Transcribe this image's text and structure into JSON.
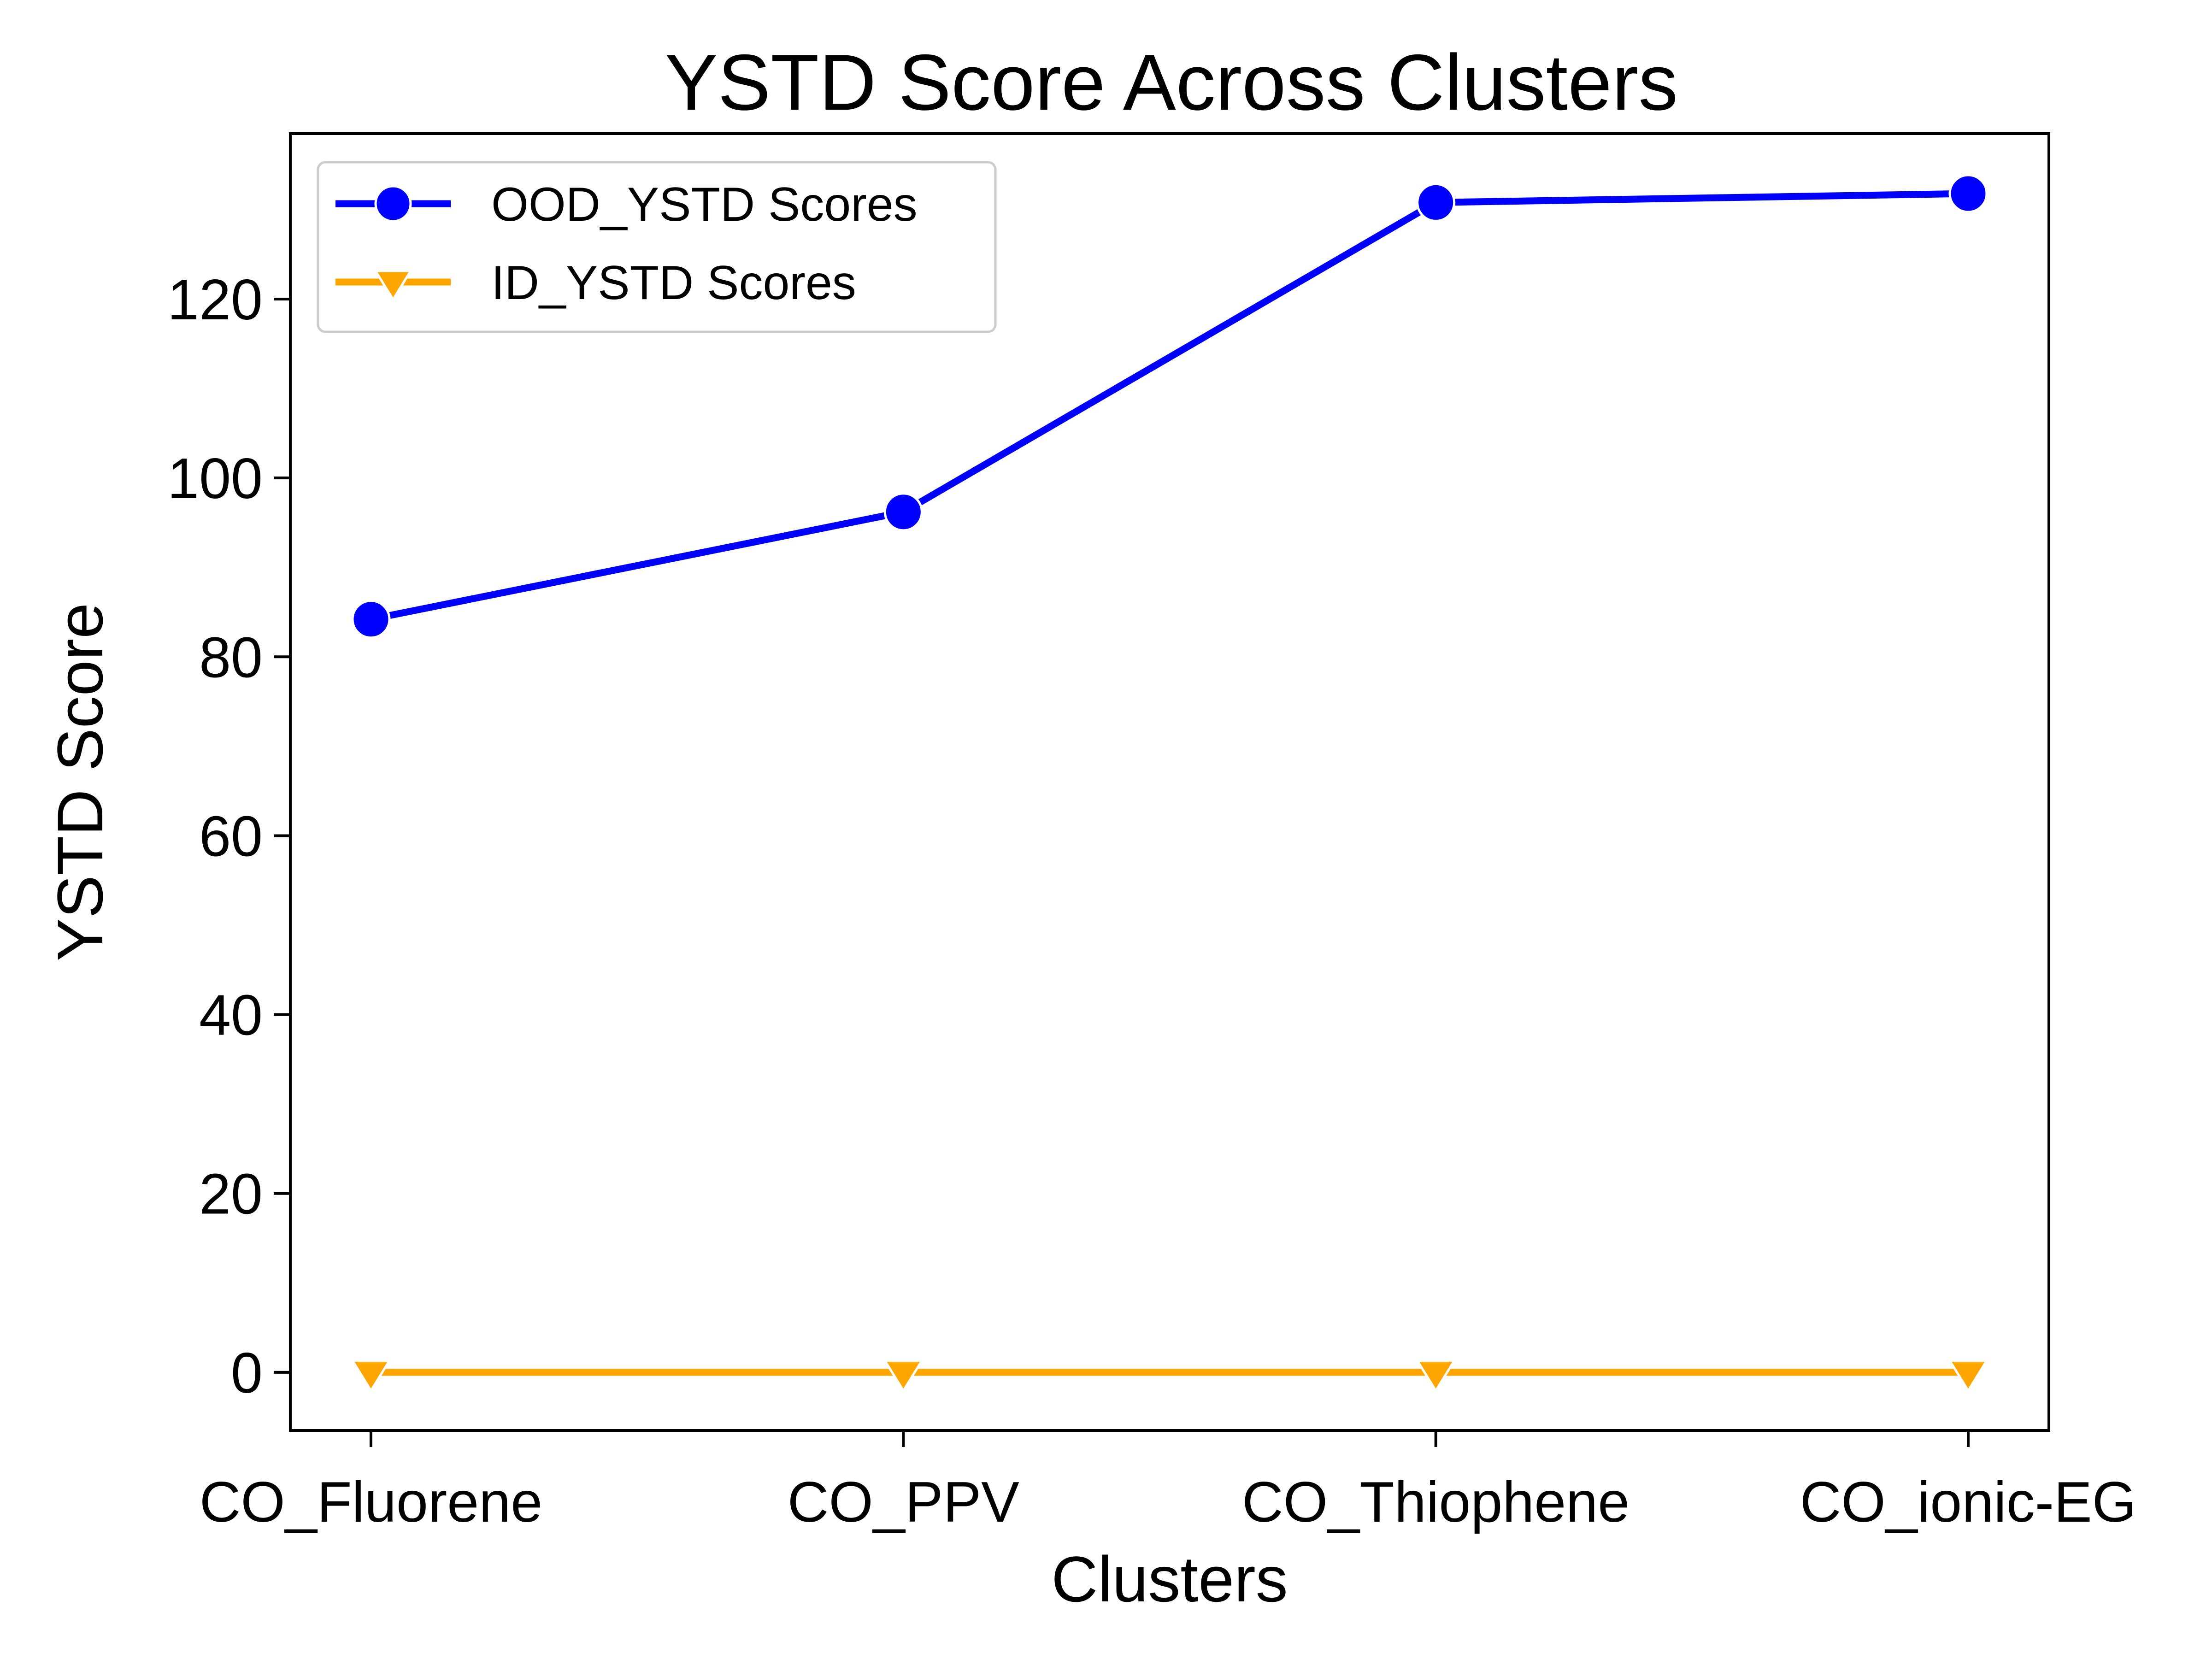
{
  "chart_data": {
    "type": "line",
    "title": "YSTD Score Across Clusters",
    "xlabel": "Clusters",
    "ylabel": "YSTD Score",
    "categories": [
      "CO_Fluorene",
      "CO_PPV",
      "CO_Thiophene",
      "CO_ionic-EG"
    ],
    "ylim": [
      -6.5,
      138.5
    ],
    "yticks": [
      0,
      20,
      40,
      60,
      80,
      100,
      120
    ],
    "grid": false,
    "legend_position": "top-left",
    "series": [
      {
        "name": "OOD_YSTD Scores",
        "values": [
          84.2,
          96.2,
          130.8,
          131.8
        ],
        "color": "#0000ff",
        "marker": "circle"
      },
      {
        "name": "ID_YSTD Scores",
        "values": [
          0.0,
          0.0,
          0.0,
          0.0
        ],
        "color": "#ffa500",
        "marker": "triangle-down"
      }
    ]
  }
}
